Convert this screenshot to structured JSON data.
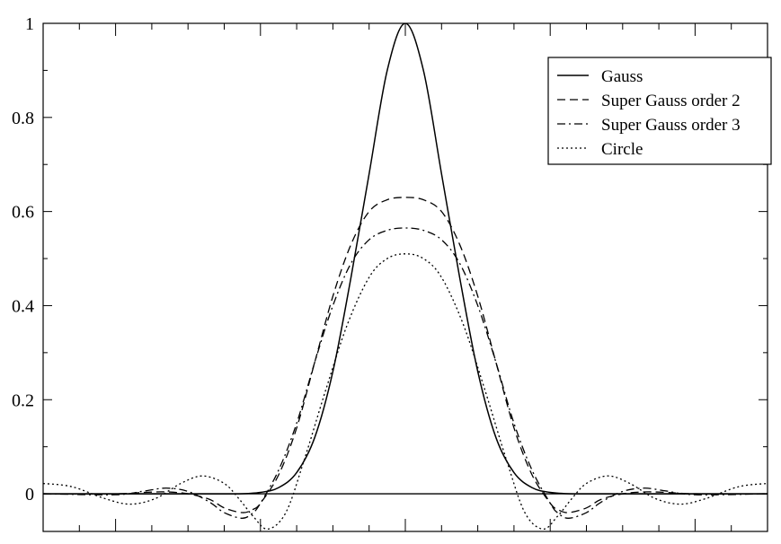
{
  "chart_data": {
    "type": "line",
    "title": "",
    "xlabel": "",
    "ylabel": "",
    "xlim": [
      -10,
      10
    ],
    "ylim": [
      -0.08,
      1.0
    ],
    "x_ticks_major": [
      -8,
      -4,
      0,
      4,
      8
    ],
    "x_tick_labels": [],
    "y_ticks": [
      0,
      0.2,
      0.4,
      0.6,
      0.8,
      1
    ],
    "y_tick_labels": [
      "0",
      "0.2",
      "0.4",
      "0.6",
      "0.8",
      "1"
    ],
    "grid": false,
    "zero_line": true,
    "legend_position": "top-right",
    "series": [
      {
        "name": "Gauss",
        "style": "solid",
        "x": [
          -10,
          -6,
          -4.6,
          -4,
          -3.5,
          -3,
          -2.5,
          -2,
          -1.5,
          -1,
          -0.5,
          0,
          0.5,
          1,
          1.5,
          2,
          2.5,
          3,
          3.5,
          4,
          4.6,
          6,
          10
        ],
        "y": [
          0,
          0,
          0,
          0.003,
          0.013,
          0.045,
          0.12,
          0.26,
          0.46,
          0.68,
          0.9,
          1.0,
          0.9,
          0.68,
          0.46,
          0.26,
          0.12,
          0.045,
          0.013,
          0.003,
          0,
          0,
          0
        ]
      },
      {
        "name": "Super Gauss order 2",
        "style": "dashed",
        "x": [
          -10,
          -8,
          -7.2,
          -6.6,
          -6,
          -5.4,
          -5,
          -4.5,
          -4.2,
          -4,
          -3.5,
          -3,
          -2.5,
          -2,
          -1.5,
          -1,
          -0.5,
          0,
          0.5,
          1,
          1.5,
          2,
          2.5,
          3,
          3.5,
          4,
          4.2,
          4.5,
          5,
          5.4,
          6,
          6.6,
          7.2,
          8,
          10
        ],
        "y": [
          0,
          0,
          0.003,
          0.004,
          0.0,
          -0.012,
          -0.03,
          -0.04,
          -0.033,
          -0.02,
          0.04,
          0.14,
          0.28,
          0.42,
          0.53,
          0.6,
          0.625,
          0.63,
          0.625,
          0.6,
          0.53,
          0.42,
          0.28,
          0.14,
          0.04,
          -0.02,
          -0.033,
          -0.04,
          -0.03,
          -0.012,
          0.0,
          0.004,
          0.003,
          0,
          0
        ]
      },
      {
        "name": "Super Gauss order 3",
        "style": "dashdot",
        "x": [
          -10,
          -8,
          -7.2,
          -6.6,
          -6,
          -5.4,
          -5,
          -4.5,
          -4.2,
          -4,
          -3.5,
          -3,
          -2.5,
          -2,
          -1.5,
          -1,
          -0.5,
          0,
          0.5,
          1,
          1.5,
          2,
          2.5,
          3,
          3.5,
          4,
          4.2,
          4.5,
          5,
          5.4,
          6,
          6.6,
          7.2,
          8,
          10
        ],
        "y": [
          0,
          -0.002,
          0.006,
          0.012,
          0.005,
          -0.018,
          -0.04,
          -0.052,
          -0.04,
          -0.02,
          0.05,
          0.15,
          0.28,
          0.4,
          0.49,
          0.54,
          0.56,
          0.565,
          0.56,
          0.54,
          0.49,
          0.4,
          0.28,
          0.15,
          0.05,
          -0.02,
          -0.04,
          -0.052,
          -0.04,
          -0.018,
          0.005,
          0.012,
          0.006,
          -0.002,
          0
        ]
      },
      {
        "name": "Circle",
        "style": "dotted",
        "x": [
          -10,
          -9.2,
          -8.3,
          -7.6,
          -6.9,
          -6.2,
          -5.6,
          -5,
          -4.6,
          -4.2,
          -3.8,
          -3.3,
          -2.8,
          -2.2,
          -1.6,
          -1,
          -0.5,
          0,
          0.5,
          1,
          1.6,
          2.2,
          2.8,
          3.3,
          3.8,
          4.2,
          4.6,
          5,
          5.6,
          6.2,
          6.9,
          7.6,
          8.3,
          9.2,
          10
        ],
        "y": [
          0.022,
          0.015,
          -0.01,
          -0.022,
          -0.01,
          0.022,
          0.038,
          0.022,
          -0.01,
          -0.048,
          -0.075,
          -0.04,
          0.07,
          0.22,
          0.36,
          0.46,
          0.5,
          0.51,
          0.5,
          0.46,
          0.36,
          0.22,
          0.07,
          -0.04,
          -0.075,
          -0.048,
          -0.01,
          0.022,
          0.038,
          0.022,
          -0.01,
          -0.022,
          -0.01,
          0.015,
          0.022
        ]
      }
    ]
  }
}
